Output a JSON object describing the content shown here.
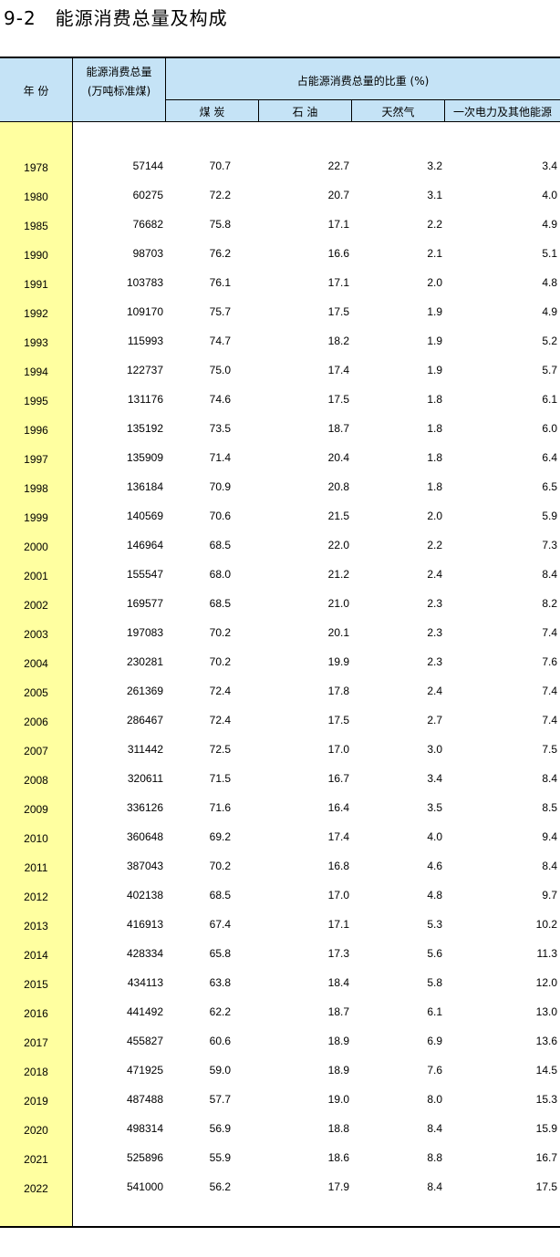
{
  "title": "9-2　能源消费总量及构成",
  "header": {
    "year": "年 份",
    "total_line1": "能源消费总量",
    "total_line2": "(万吨标准煤)",
    "share": "占能源消费总量的比重 (%)",
    "coal": "煤 炭",
    "oil": "石 油",
    "gas": "天然气",
    "other": "一次电力及其他能源"
  },
  "colors": {
    "header_bg": "#c5e3f6",
    "year_bg": "#ffffa0"
  },
  "rows": [
    {
      "year": "1978",
      "total": "57144",
      "coal": "70.7",
      "oil": "22.7",
      "gas": "3.2",
      "other": "3.4"
    },
    {
      "year": "1980",
      "total": "60275",
      "coal": "72.2",
      "oil": "20.7",
      "gas": "3.1",
      "other": "4.0"
    },
    {
      "year": "1985",
      "total": "76682",
      "coal": "75.8",
      "oil": "17.1",
      "gas": "2.2",
      "other": "4.9"
    },
    {
      "year": "1990",
      "total": "98703",
      "coal": "76.2",
      "oil": "16.6",
      "gas": "2.1",
      "other": "5.1"
    },
    {
      "year": "1991",
      "total": "103783",
      "coal": "76.1",
      "oil": "17.1",
      "gas": "2.0",
      "other": "4.8"
    },
    {
      "year": "1992",
      "total": "109170",
      "coal": "75.7",
      "oil": "17.5",
      "gas": "1.9",
      "other": "4.9"
    },
    {
      "year": "1993",
      "total": "115993",
      "coal": "74.7",
      "oil": "18.2",
      "gas": "1.9",
      "other": "5.2"
    },
    {
      "year": "1994",
      "total": "122737",
      "coal": "75.0",
      "oil": "17.4",
      "gas": "1.9",
      "other": "5.7"
    },
    {
      "year": "1995",
      "total": "131176",
      "coal": "74.6",
      "oil": "17.5",
      "gas": "1.8",
      "other": "6.1"
    },
    {
      "year": "1996",
      "total": "135192",
      "coal": "73.5",
      "oil": "18.7",
      "gas": "1.8",
      "other": "6.0"
    },
    {
      "year": "1997",
      "total": "135909",
      "coal": "71.4",
      "oil": "20.4",
      "gas": "1.8",
      "other": "6.4"
    },
    {
      "year": "1998",
      "total": "136184",
      "coal": "70.9",
      "oil": "20.8",
      "gas": "1.8",
      "other": "6.5"
    },
    {
      "year": "1999",
      "total": "140569",
      "coal": "70.6",
      "oil": "21.5",
      "gas": "2.0",
      "other": "5.9"
    },
    {
      "year": "2000",
      "total": "146964",
      "coal": "68.5",
      "oil": "22.0",
      "gas": "2.2",
      "other": "7.3"
    },
    {
      "year": "2001",
      "total": "155547",
      "coal": "68.0",
      "oil": "21.2",
      "gas": "2.4",
      "other": "8.4"
    },
    {
      "year": "2002",
      "total": "169577",
      "coal": "68.5",
      "oil": "21.0",
      "gas": "2.3",
      "other": "8.2"
    },
    {
      "year": "2003",
      "total": "197083",
      "coal": "70.2",
      "oil": "20.1",
      "gas": "2.3",
      "other": "7.4"
    },
    {
      "year": "2004",
      "total": "230281",
      "coal": "70.2",
      "oil": "19.9",
      "gas": "2.3",
      "other": "7.6"
    },
    {
      "year": "2005",
      "total": "261369",
      "coal": "72.4",
      "oil": "17.8",
      "gas": "2.4",
      "other": "7.4"
    },
    {
      "year": "2006",
      "total": "286467",
      "coal": "72.4",
      "oil": "17.5",
      "gas": "2.7",
      "other": "7.4"
    },
    {
      "year": "2007",
      "total": "311442",
      "coal": "72.5",
      "oil": "17.0",
      "gas": "3.0",
      "other": "7.5"
    },
    {
      "year": "2008",
      "total": "320611",
      "coal": "71.5",
      "oil": "16.7",
      "gas": "3.4",
      "other": "8.4"
    },
    {
      "year": "2009",
      "total": "336126",
      "coal": "71.6",
      "oil": "16.4",
      "gas": "3.5",
      "other": "8.5"
    },
    {
      "year": "2010",
      "total": "360648",
      "coal": "69.2",
      "oil": "17.4",
      "gas": "4.0",
      "other": "9.4"
    },
    {
      "year": "2011",
      "total": "387043",
      "coal": "70.2",
      "oil": "16.8",
      "gas": "4.6",
      "other": "8.4"
    },
    {
      "year": "2012",
      "total": "402138",
      "coal": "68.5",
      "oil": "17.0",
      "gas": "4.8",
      "other": "9.7"
    },
    {
      "year": "2013",
      "total": "416913",
      "coal": "67.4",
      "oil": "17.1",
      "gas": "5.3",
      "other": "10.2"
    },
    {
      "year": "2014",
      "total": "428334",
      "coal": "65.8",
      "oil": "17.3",
      "gas": "5.6",
      "other": "11.3"
    },
    {
      "year": "2015",
      "total": "434113",
      "coal": "63.8",
      "oil": "18.4",
      "gas": "5.8",
      "other": "12.0"
    },
    {
      "year": "2016",
      "total": "441492",
      "coal": "62.2",
      "oil": "18.7",
      "gas": "6.1",
      "other": "13.0"
    },
    {
      "year": "2017",
      "total": "455827",
      "coal": "60.6",
      "oil": "18.9",
      "gas": "6.9",
      "other": "13.6"
    },
    {
      "year": "2018",
      "total": "471925",
      "coal": "59.0",
      "oil": "18.9",
      "gas": "7.6",
      "other": "14.5"
    },
    {
      "year": "2019",
      "total": "487488",
      "coal": "57.7",
      "oil": "19.0",
      "gas": "8.0",
      "other": "15.3"
    },
    {
      "year": "2020",
      "total": "498314",
      "coal": "56.9",
      "oil": "18.8",
      "gas": "8.4",
      "other": "15.9"
    },
    {
      "year": "2021",
      "total": "525896",
      "coal": "55.9",
      "oil": "18.6",
      "gas": "8.8",
      "other": "16.7"
    },
    {
      "year": "2022",
      "total": "541000",
      "coal": "56.2",
      "oil": "17.9",
      "gas": "8.4",
      "other": "17.5"
    }
  ]
}
